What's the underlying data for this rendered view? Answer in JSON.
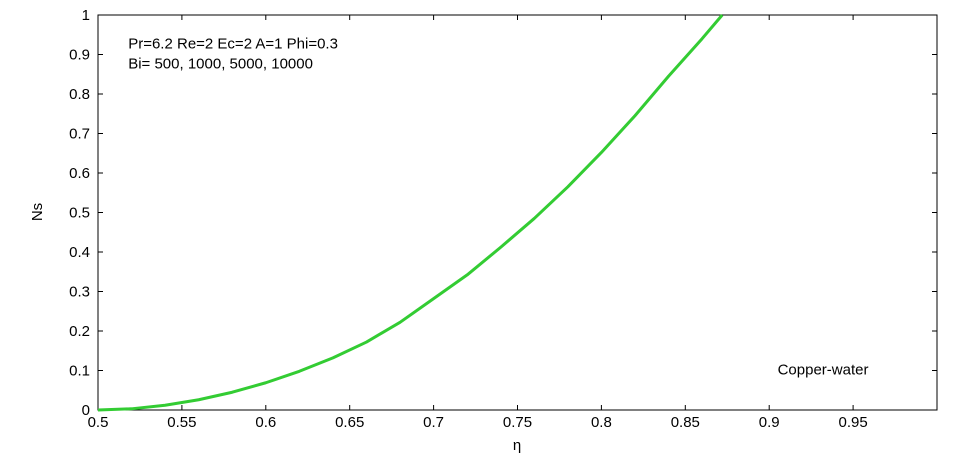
{
  "chart_data": {
    "type": "line",
    "title": "",
    "xlabel": "η",
    "ylabel": "Ns",
    "xlim": [
      0.5,
      1.0
    ],
    "ylim": [
      0,
      1
    ],
    "xticks": [
      0.5,
      0.55,
      0.6,
      0.65,
      0.7,
      0.75,
      0.8,
      0.85,
      0.9,
      0.95
    ],
    "yticks": [
      0,
      0.1,
      0.2,
      0.3,
      0.4,
      0.5,
      0.6,
      0.7,
      0.8,
      0.9,
      1
    ],
    "grid": false,
    "series": [
      {
        "color": "#33cc33",
        "x": [
          0.5,
          0.52,
          0.54,
          0.56,
          0.58,
          0.6,
          0.62,
          0.64,
          0.66,
          0.68,
          0.7,
          0.72,
          0.74,
          0.76,
          0.78,
          0.8,
          0.82,
          0.84,
          0.86,
          0.872
        ],
        "y": [
          0.0,
          0.003,
          0.012,
          0.026,
          0.045,
          0.069,
          0.098,
          0.132,
          0.172,
          0.222,
          0.282,
          0.342,
          0.412,
          0.485,
          0.565,
          0.652,
          0.745,
          0.845,
          0.94,
          1.0
        ]
      }
    ],
    "annotations": [
      {
        "text": "Pr=6.2 Re=2 Ec=2 A=1 Phi=0.3",
        "x": 0.518,
        "y": 0.915
      },
      {
        "text": "Bi= 500, 1000, 5000, 10000",
        "x": 0.518,
        "y": 0.865
      },
      {
        "text": "Copper-water",
        "x": 0.905,
        "y": 0.09
      }
    ]
  }
}
